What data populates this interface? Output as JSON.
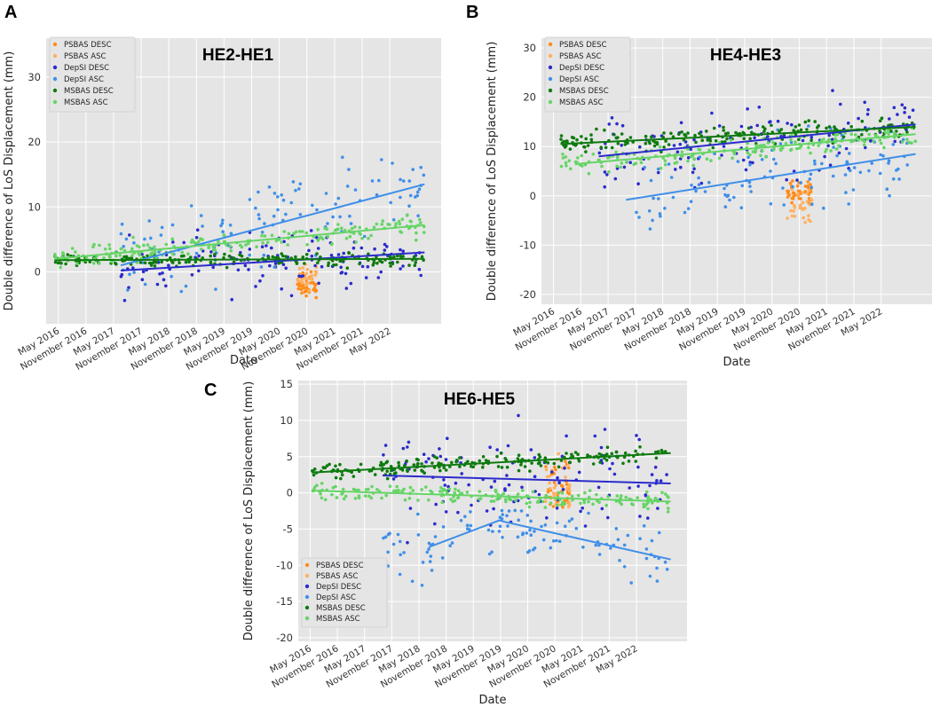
{
  "figure": {
    "letters": [
      "A",
      "B",
      "C"
    ]
  },
  "series_styles": [
    {
      "name": "PSBAS DESC",
      "color": "#ff8c1a"
    },
    {
      "name": "PSBAS ASC",
      "color": "#ffb060"
    },
    {
      "name": "DepSI DESC",
      "color": "#2b2bcc"
    },
    {
      "name": "DepSI ASC",
      "color": "#3f8fe8"
    },
    {
      "name": "MSBAS DESC",
      "color": "#0e7a0e"
    },
    {
      "name": "MSBAS ASC",
      "color": "#66d466"
    }
  ],
  "chart_data": [
    {
      "type": "scatter",
      "title": "HE2-HE1",
      "xlabel": "Date",
      "ylabel": "Double difference of LoS Displacement (mm)",
      "xticks": [
        "May 2016",
        "November 2016",
        "May 2017",
        "November 2017",
        "May 2018",
        "November 2018",
        "May 2019",
        "November 2019",
        "May 2020",
        "November 2020",
        "May 2021",
        "November 2021",
        "May 2022"
      ],
      "xlim": [
        2016.15,
        2023.3
      ],
      "yticks": [
        "0",
        "10",
        "20",
        "30"
      ],
      "ylim": [
        -8,
        36
      ],
      "legend": [
        "PSBAS DESC",
        "PSBAS ASC",
        "DepSI DESC",
        "DepSI ASC",
        "MSBAS DESC",
        "MSBAS ASC"
      ],
      "legend_position": "top-left",
      "series": [
        {
          "name": "PSBAS DESC",
          "x_range": [
            2020.7,
            2021.05
          ],
          "center": -2,
          "spread": 1.5
        },
        {
          "name": "PSBAS ASC",
          "x_range": [
            2020.7,
            2021.05
          ],
          "center": -1,
          "spread": 1.5
        },
        {
          "name": "DepSI DESC",
          "x_range": [
            2017.5,
            2023.0
          ],
          "trend": [
            [
              2017.5,
              0.2
            ],
            [
              2023.0,
              3.0
            ]
          ],
          "spread": 3.5
        },
        {
          "name": "DepSI ASC",
          "x_range": [
            2017.5,
            2023.0
          ],
          "trend": [
            [
              2017.5,
              1.0
            ],
            [
              2023.0,
              13.5
            ]
          ],
          "spread": 5.5
        },
        {
          "name": "MSBAS DESC",
          "x_range": [
            2016.3,
            2023.0
          ],
          "trend": [
            [
              2016.3,
              1.8
            ],
            [
              2023.0,
              2.0
            ]
          ],
          "spread": 0.8
        },
        {
          "name": "MSBAS ASC",
          "x_range": [
            2016.3,
            2023.0
          ],
          "trend": [
            [
              2016.3,
              2.0
            ],
            [
              2023.0,
              7.2
            ]
          ],
          "spread": 1.2
        }
      ]
    },
    {
      "type": "scatter",
      "title": "HE4-HE3",
      "xlabel": "Date",
      "ylabel": "Double difference of LoS Displacement (mm)",
      "xticks": [
        "May 2016",
        "November 2016",
        "May 2017",
        "November 2017",
        "May 2018",
        "November 2018",
        "May 2019",
        "November 2019",
        "May 2020",
        "November 2020",
        "May 2021",
        "November 2021",
        "May 2022"
      ],
      "xlim": [
        2016.15,
        2023.3
      ],
      "yticks": [
        "-20",
        "-10",
        "0",
        "10",
        "20",
        "30"
      ],
      "ylim": [
        -22,
        32
      ],
      "legend": [
        "PSBAS DESC",
        "PSBAS ASC",
        "DepSI DESC",
        "DepSI ASC",
        "MSBAS DESC",
        "MSBAS ASC"
      ],
      "legend_position": "top-left",
      "series": [
        {
          "name": "PSBAS DESC",
          "x_range": [
            2020.65,
            2021.1
          ],
          "center": 0,
          "spread": 2.2
        },
        {
          "name": "PSBAS ASC",
          "x_range": [
            2020.65,
            2021.1
          ],
          "center": -2,
          "spread": 2.5
        },
        {
          "name": "DepSI DESC",
          "x_range": [
            2017.2,
            2023.0
          ],
          "trend": [
            [
              2017.2,
              8.0
            ],
            [
              2023.0,
              14.5
            ]
          ],
          "spread": 5.5
        },
        {
          "name": "DepSI ASC",
          "x_range": [
            2017.7,
            2023.0
          ],
          "trend": [
            [
              2017.7,
              -0.8
            ],
            [
              2023.0,
              8.5
            ]
          ],
          "spread": 6.0
        },
        {
          "name": "MSBAS DESC",
          "x_range": [
            2016.5,
            2023.0
          ],
          "trend": [
            [
              2016.5,
              10.5
            ],
            [
              2023.0,
              14.0
            ]
          ],
          "spread": 1.5
        },
        {
          "name": "MSBAS ASC",
          "x_range": [
            2016.5,
            2023.0
          ],
          "trend": [
            [
              2016.8,
              6.5
            ],
            [
              2023.0,
              12.5
            ]
          ],
          "spread": 1.5
        }
      ]
    },
    {
      "type": "scatter",
      "title": "HE6-HE5",
      "xlabel": "Date",
      "ylabel": "Double difference of LoS Displacement (mm)",
      "xticks": [
        "May 2016",
        "November 2016",
        "May 2017",
        "November 2017",
        "May 2018",
        "November 2018",
        "May 2019",
        "November 2019",
        "May 2020",
        "November 2020",
        "May 2021",
        "November 2021",
        "May 2022"
      ],
      "xlim": [
        2016.15,
        2023.3
      ],
      "yticks": [
        "-20",
        "-15",
        "-10",
        "-5",
        "0",
        "5",
        "10",
        "15"
      ],
      "ylim": [
        -20.5,
        15.5
      ],
      "legend": [
        "PSBAS DESC",
        "PSBAS ASC",
        "DepSI DESC",
        "DepSI ASC",
        "MSBAS DESC",
        "MSBAS ASC"
      ],
      "legend_position": "bottom-left",
      "series": [
        {
          "name": "PSBAS DESC",
          "x_range": [
            2020.7,
            2021.15
          ],
          "center": 0.5,
          "spread": 2.5
        },
        {
          "name": "PSBAS ASC",
          "x_range": [
            2020.7,
            2021.15
          ],
          "center": 1.0,
          "spread": 3.5
        },
        {
          "name": "DepSI DESC",
          "x_range": [
            2017.7,
            2023.0
          ],
          "trend": [
            [
              2017.7,
              2.4
            ],
            [
              2023.0,
              1.3
            ]
          ],
          "spread": 5.5
        },
        {
          "name": "DepSI ASC",
          "x_range": [
            2017.7,
            2023.0
          ],
          "trend": [
            [
              2018.55,
              -7.5
            ],
            [
              2019.85,
              -3.8
            ],
            [
              2019.95,
              -4.0
            ],
            [
              2023.0,
              -9.2
            ]
          ],
          "spread": 3.5
        },
        {
          "name": "MSBAS DESC",
          "x_range": [
            2016.4,
            2023.0
          ],
          "trend": [
            [
              2016.4,
              2.8
            ],
            [
              2023.0,
              5.5
            ]
          ],
          "spread": 0.9
        },
        {
          "name": "MSBAS ASC",
          "x_range": [
            2016.4,
            2023.0
          ],
          "trend": [
            [
              2016.4,
              0.3
            ],
            [
              2023.0,
              -1.2
            ]
          ],
          "spread": 0.9
        }
      ]
    }
  ]
}
